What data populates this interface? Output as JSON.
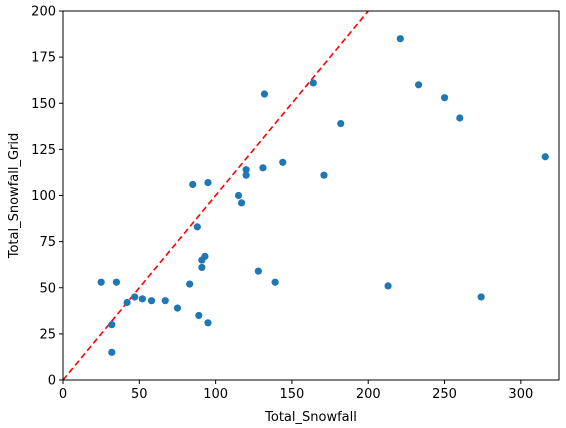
{
  "chart_data": {
    "type": "scatter",
    "xlabel": "Total_Snowfall",
    "ylabel": "Total_Snowfall_Grid",
    "xlim": [
      0,
      325
    ],
    "ylim": [
      0,
      200
    ],
    "xticks": [
      0,
      50,
      100,
      150,
      200,
      250,
      300
    ],
    "yticks": [
      0,
      25,
      50,
      75,
      100,
      125,
      150,
      175,
      200
    ],
    "grid": false,
    "point_color": "#1f77b4",
    "reference_line": {
      "type": "y=x",
      "color": "#ff0000",
      "style": "dashed"
    },
    "points": [
      {
        "x": 25,
        "y": 53
      },
      {
        "x": 35,
        "y": 53
      },
      {
        "x": 32,
        "y": 15
      },
      {
        "x": 32,
        "y": 30
      },
      {
        "x": 42,
        "y": 42
      },
      {
        "x": 47,
        "y": 45
      },
      {
        "x": 52,
        "y": 44
      },
      {
        "x": 58,
        "y": 43
      },
      {
        "x": 67,
        "y": 43
      },
      {
        "x": 75,
        "y": 39
      },
      {
        "x": 83,
        "y": 52
      },
      {
        "x": 89,
        "y": 35
      },
      {
        "x": 95,
        "y": 31
      },
      {
        "x": 85,
        "y": 106
      },
      {
        "x": 88,
        "y": 83
      },
      {
        "x": 91,
        "y": 65
      },
      {
        "x": 91,
        "y": 61
      },
      {
        "x": 93,
        "y": 67
      },
      {
        "x": 95,
        "y": 107
      },
      {
        "x": 115,
        "y": 100
      },
      {
        "x": 117,
        "y": 96
      },
      {
        "x": 120,
        "y": 114
      },
      {
        "x": 120,
        "y": 111
      },
      {
        "x": 128,
        "y": 59
      },
      {
        "x": 132,
        "y": 155
      },
      {
        "x": 131,
        "y": 115
      },
      {
        "x": 139,
        "y": 53
      },
      {
        "x": 144,
        "y": 118
      },
      {
        "x": 164,
        "y": 161
      },
      {
        "x": 171,
        "y": 111
      },
      {
        "x": 182,
        "y": 139
      },
      {
        "x": 213,
        "y": 51
      },
      {
        "x": 221,
        "y": 185
      },
      {
        "x": 233,
        "y": 160
      },
      {
        "x": 250,
        "y": 153
      },
      {
        "x": 260,
        "y": 142
      },
      {
        "x": 274,
        "y": 45
      },
      {
        "x": 316,
        "y": 121
      }
    ]
  }
}
